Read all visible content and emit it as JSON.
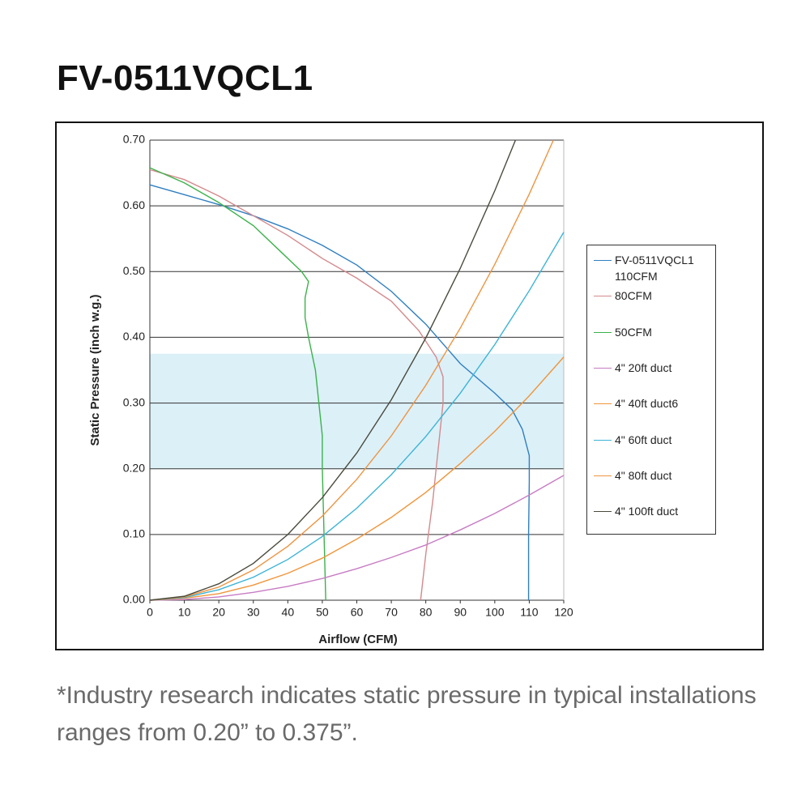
{
  "header": {
    "title": "FV-0511VQCL1"
  },
  "footnote": "*Industry research indicates static pressure in typical installations ranges from 0.20” to 0.375”.",
  "chart_data": {
    "type": "line",
    "x_label": "Airflow (CFM)",
    "y_label": "Static Pressure (inch w.g.)",
    "xlim": [
      0,
      120
    ],
    "ylim": [
      0,
      0.7
    ],
    "xticks": [
      0,
      10,
      20,
      30,
      40,
      50,
      60,
      70,
      80,
      90,
      100,
      110,
      120
    ],
    "yticks": [
      {
        "value": 0,
        "label": "0.00"
      },
      {
        "value": 0.1,
        "label": "0.10"
      },
      {
        "value": 0.2,
        "label": "0.20"
      },
      {
        "value": 0.3,
        "label": "0.30"
      },
      {
        "value": 0.4,
        "label": "0.40"
      },
      {
        "value": 0.5,
        "label": "0.50"
      },
      {
        "value": 0.6,
        "label": "0.60"
      },
      {
        "value": 0.7,
        "label": "0.70"
      }
    ],
    "grid": true,
    "band": {
      "range": [
        0.2,
        0.375
      ],
      "color": "#dcf0f8"
    },
    "series": [
      {
        "name": "FV-0511VQCL1 110CFM",
        "color": "#2f7fc1",
        "x": [
          0,
          10,
          20,
          30,
          40,
          50,
          60,
          70,
          80,
          90,
          100,
          105,
          108,
          110,
          110,
          109.8,
          109.8
        ],
        "values": [
          0.632,
          0.617,
          0.602,
          0.585,
          0.565,
          0.54,
          0.51,
          0.47,
          0.42,
          0.36,
          0.315,
          0.29,
          0.26,
          0.22,
          0.18,
          0.1,
          0
        ]
      },
      {
        "name": "80CFM",
        "color": "#d4898c",
        "x": [
          0,
          10,
          20,
          30,
          40,
          50,
          60,
          70,
          78,
          83,
          85,
          85,
          84,
          82,
          80,
          78.5
        ],
        "values": [
          0.655,
          0.64,
          0.615,
          0.585,
          0.555,
          0.52,
          0.49,
          0.455,
          0.41,
          0.37,
          0.34,
          0.3,
          0.25,
          0.15,
          0.07,
          0
        ]
      },
      {
        "name": "50CFM",
        "color": "#3bb24a",
        "x": [
          0,
          10,
          20,
          30,
          38,
          44,
          46,
          45,
          45,
          46,
          48,
          49,
          50,
          50,
          50.5,
          51
        ],
        "values": [
          0.658,
          0.635,
          0.605,
          0.57,
          0.53,
          0.5,
          0.485,
          0.46,
          0.43,
          0.4,
          0.35,
          0.3,
          0.25,
          0.2,
          0.1,
          0
        ]
      },
      {
        "name": "4\" 20ft duct",
        "color": "#c77cc4",
        "x": [
          0,
          10,
          20,
          30,
          40,
          50,
          60,
          70,
          80,
          90,
          100,
          110,
          120
        ],
        "values": [
          0,
          0.001,
          0.005,
          0.012,
          0.021,
          0.033,
          0.048,
          0.065,
          0.084,
          0.107,
          0.132,
          0.16,
          0.19
        ]
      },
      {
        "name": "4\" 40ft duct6",
        "color": "#f0953a",
        "x": [
          0,
          10,
          20,
          30,
          40,
          50,
          60,
          70,
          80,
          90,
          100,
          110,
          120
        ],
        "values": [
          0,
          0.003,
          0.01,
          0.023,
          0.041,
          0.064,
          0.093,
          0.126,
          0.164,
          0.208,
          0.257,
          0.311,
          0.37
        ]
      },
      {
        "name": "4\" 60ft duct",
        "color": "#3cb4d6",
        "x": [
          0,
          10,
          20,
          30,
          40,
          50,
          60,
          70,
          80,
          90,
          100,
          110,
          120
        ],
        "values": [
          0,
          0.004,
          0.016,
          0.035,
          0.062,
          0.097,
          0.14,
          0.191,
          0.249,
          0.315,
          0.389,
          0.471,
          0.56
        ]
      },
      {
        "name": "4\" 80ft duct",
        "color": "#ee9440",
        "x": [
          0,
          10,
          20,
          30,
          40,
          50,
          60,
          70,
          80,
          90,
          100,
          110,
          117
        ],
        "values": [
          0,
          0.005,
          0.02,
          0.046,
          0.082,
          0.128,
          0.184,
          0.25,
          0.327,
          0.414,
          0.511,
          0.618,
          0.7
        ]
      },
      {
        "name": "4\" 100ft duct",
        "color": "#4a4a3c",
        "x": [
          0,
          10,
          20,
          30,
          40,
          50,
          60,
          70,
          80,
          90,
          100,
          106
        ],
        "values": [
          0,
          0.006,
          0.025,
          0.056,
          0.1,
          0.156,
          0.224,
          0.305,
          0.399,
          0.505,
          0.623,
          0.7
        ]
      }
    ]
  }
}
